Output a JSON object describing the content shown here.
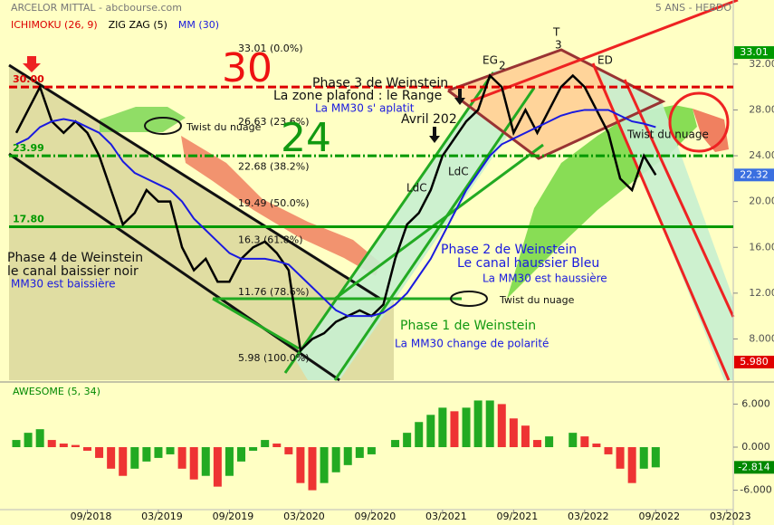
{
  "chart_data": [
    {
      "type": "line",
      "title": "ARCELOR MITTAL - abcbourse.com",
      "subtitle": "5 ANS - HEBDO",
      "indicators": [
        {
          "name": "ICHIMOKU (26, 9)",
          "color": "#dd0000"
        },
        {
          "name": "ZIG ZAG (5)",
          "color": "#000000"
        }
      ],
      "categories": [
        null,
        null,
        null,
        null,
        null,
        null,
        "09/2018",
        null,
        null,
        null,
        null,
        null,
        "03/2019",
        null,
        null,
        null,
        null,
        null,
        "09/2019",
        null,
        null,
        null,
        null,
        null,
        "03/2020",
        null,
        null,
        null,
        null,
        null,
        "09/2020",
        null,
        null,
        null,
        null,
        null,
        "03/2021",
        null,
        null,
        null,
        null,
        null,
        "09/2021",
        null,
        null,
        null,
        null,
        null,
        "03/2022",
        null,
        null,
        null,
        null,
        null,
        "09/2022",
        null,
        null,
        null,
        null,
        null,
        "03/2023",
        null,
        null,
        null
      ],
      "series": [
        {
          "color": "#000000",
          "last_value_color": "#3a6fe0",
          "values": [
            26,
            28,
            30,
            27,
            26,
            27,
            26,
            24,
            21,
            18,
            19,
            21,
            20,
            20,
            16,
            14,
            15,
            13,
            13,
            15,
            16,
            16.5,
            15.5,
            14,
            7,
            8,
            8.5,
            9.5,
            10,
            10.5,
            10,
            11,
            15,
            18,
            19,
            21,
            24,
            25.5,
            27,
            28,
            31,
            30,
            26,
            28,
            26,
            28,
            30,
            31,
            30,
            28,
            26,
            22,
            21,
            24,
            22.32,
            null,
            null,
            null,
            null,
            null,
            null,
            null,
            null,
            null
          ]
        },
        {
          "name": "MM (30)",
          "color": "#1a1adf",
          "values": [
            25,
            25.5,
            26.5,
            27,
            27.2,
            27,
            26.5,
            26,
            25,
            23.5,
            22.5,
            22,
            21.5,
            21,
            20,
            18.5,
            17.5,
            16.5,
            15.5,
            15,
            15,
            15,
            14.8,
            14.5,
            13.5,
            12.5,
            11.5,
            10.5,
            10,
            10,
            10,
            10.3,
            11,
            12,
            13.5,
            15,
            17,
            19,
            21,
            22.5,
            24,
            25,
            25.5,
            26,
            26.5,
            27,
            27.5,
            27.8,
            28,
            28,
            28,
            27.5,
            27,
            26.8,
            26.5,
            null,
            null,
            null,
            null,
            null,
            null,
            null,
            null,
            null
          ]
        }
      ],
      "ylim": [
        4.4,
        37.6
      ],
      "yticks": [
        {
          "value": 8,
          "label": "8.000"
        },
        {
          "value": 12,
          "label": "12.00"
        },
        {
          "value": 16,
          "label": "16.00"
        },
        {
          "value": 20,
          "label": "20.00"
        },
        {
          "value": 24,
          "label": "24.00"
        },
        {
          "value": 28,
          "label": "28.00"
        },
        {
          "value": 32,
          "label": "32.00"
        }
      ],
      "price_marks": [
        {
          "value": 33.01,
          "color": "#009900"
        },
        {
          "value": 5.98,
          "label": "5.980",
          "color": "#e00000"
        }
      ],
      "levels": [
        {
          "value": 30,
          "label": "30.00",
          "color": "#dd0000",
          "dash": "9 4"
        },
        {
          "value": 23.99,
          "label": "23.99",
          "color": "#009900",
          "dash": "10 3 2 3"
        },
        {
          "value": 17.8,
          "label": "17.80",
          "color": "#009900",
          "dash": "none"
        }
      ],
      "fib_levels": [
        {
          "value": 33.01,
          "label": "33.01 (0.0%)"
        },
        {
          "value": 26.63,
          "label": "26.63 (23.6%)"
        },
        {
          "value": 22.68,
          "label": "22.68 (38.2%)"
        },
        {
          "value": 19.49,
          "label": "19.49 (50.0%)"
        },
        {
          "value": 16.3,
          "label": "16.3 (61.8%)"
        },
        {
          "value": 11.76,
          "label": "11.76 (78.6%)"
        },
        {
          "value": 5.98,
          "label": "5.98 (100.0%)"
        }
      ],
      "annotations": [
        "30",
        "24",
        "Phase 3 de Weinstein",
        "La zone plafond : le Range",
        "La MM30 s' aplatit",
        "Avril 202",
        "Twist du nuage",
        "Twist du nuage",
        "Twist du nuage",
        "Phase 4 de Weinstein",
        "le canal baissier noir",
        "MM30 est baissière",
        "Phase 2 de Weinstein",
        "Le canal haussier Bleu",
        "La MM30 est haussière",
        "Phase 1 de Weinstein",
        "La MM30 change de polarité",
        "EG",
        "2",
        "T",
        "3",
        "ED",
        "LdC",
        "LdC"
      ]
    },
    {
      "type": "bar",
      "title": "AWESOME (5, 34)",
      "up_color": "#22aa22",
      "down_color": "#ee3333",
      "last_value_color": "#008800",
      "values": [
        1,
        2,
        2.5,
        1,
        0.5,
        0.3,
        -0.5,
        -1.5,
        -3,
        -4,
        -3,
        -2,
        -1.5,
        -1,
        -3,
        -4.5,
        -4,
        -5.5,
        -4,
        -2,
        -0.5,
        1,
        0.5,
        -1,
        -5,
        -6,
        -5,
        -3.5,
        -2.5,
        -1.5,
        -1,
        0,
        1,
        2,
        3.5,
        4.5,
        5.5,
        5,
        5.5,
        6.5,
        6.5,
        6,
        4,
        3,
        1,
        1.5,
        0,
        2,
        1.5,
        0.5,
        -1,
        -3,
        -5,
        -3,
        -2.814,
        null,
        null,
        null,
        null,
        null,
        null,
        null,
        null,
        null
      ],
      "ylim": [
        -8.7,
        8.7
      ],
      "yticks": [
        {
          "value": 6,
          "label": "6.000"
        },
        {
          "value": 0,
          "label": "0.000"
        },
        {
          "value": -6,
          "label": "-6.000"
        }
      ]
    }
  ]
}
